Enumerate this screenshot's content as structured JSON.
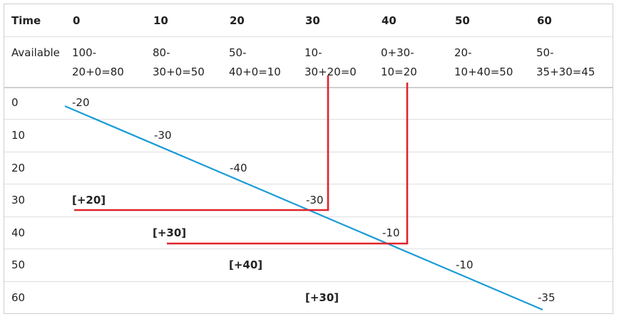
{
  "header": {
    "corner": "Time",
    "cols": [
      "0",
      "10",
      "20",
      "30",
      "40",
      "50",
      "60"
    ]
  },
  "available": {
    "label": "Available",
    "cells": [
      [
        "100-",
        "20+0=80"
      ],
      [
        "80-",
        "30+0=50"
      ],
      [
        "50-",
        "40+0=10"
      ],
      [
        "10-",
        "30+20=0"
      ],
      [
        "0+30-",
        "10=20"
      ],
      [
        "20-",
        "10+40=50"
      ],
      [
        "50-",
        "35+30=45"
      ]
    ]
  },
  "rows": [
    {
      "label": "0",
      "diag": "-20",
      "carry": ""
    },
    {
      "label": "10",
      "diag": "-30",
      "carry": ""
    },
    {
      "label": "20",
      "diag": "-40",
      "carry": ""
    },
    {
      "label": "30",
      "diag": "-30",
      "carry": "[+20]"
    },
    {
      "label": "40",
      "diag": "-10",
      "carry": "[+30]"
    },
    {
      "label": "50",
      "diag": "-10",
      "carry": "[+40]"
    },
    {
      "label": "60",
      "diag": "-35",
      "carry": "[+30]"
    }
  ],
  "colors": {
    "diagonal_line": "#1a9bd7",
    "connector_line": "#e0242a",
    "grid": "#dedede"
  }
}
